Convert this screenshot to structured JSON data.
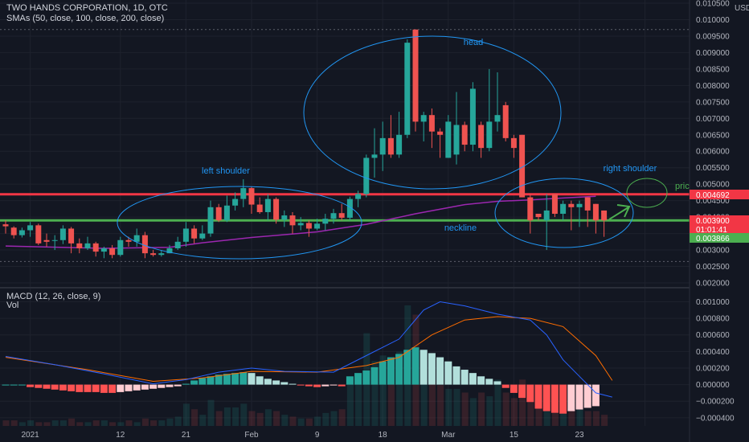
{
  "header": {
    "title": "TWO HANDS CORPORATION, 1D, OTC",
    "sma_label": "SMAs (50, close, 100, close, 200, close)",
    "currency": "USD"
  },
  "indicators": {
    "macd_label": "MACD (12, 26, close, 9)",
    "vol_label": "Vol"
  },
  "colors": {
    "background": "#131722",
    "up": "#26a69a",
    "down": "#ef5350",
    "sma": "#9c27b0",
    "resistance": "#f23645",
    "neckline": "#4caf50",
    "annotation": "#2196f3",
    "macd": "#2962ff",
    "signal": "#ff6d00"
  },
  "chart_data": [
    {
      "type": "candlestick",
      "price_axis": {
        "ylim": [
          0.002,
          0.0105
        ],
        "ticks": [
          0.002,
          0.0025,
          0.003,
          0.0035,
          0.004,
          0.0045,
          0.005,
          0.0055,
          0.006,
          0.0065,
          0.007,
          0.0075,
          0.008,
          0.0085,
          0.009,
          0.0095,
          0.01,
          0.0105
        ],
        "tick_labels": [
          "0.002000",
          "0.002500",
          "0.003000",
          "0.003500",
          "0.004000",
          "0.004500",
          "0.005000",
          "0.005500",
          "0.006000",
          "0.006500",
          "0.007000",
          "0.007500",
          "0.008000",
          "0.008500",
          "0.009000",
          "0.009500",
          "0.010000",
          "0.010500"
        ]
      },
      "time_axis": {
        "ticks": [
          3,
          14,
          22,
          30,
          38,
          46,
          54,
          62,
          70,
          78
        ],
        "labels": [
          "2021",
          "12",
          "21",
          "Feb",
          "9",
          "18",
          "Mar",
          "15",
          "23"
        ]
      },
      "candles": [
        [
          0.00378,
          0.00372,
          0.0039,
          0.0035
        ],
        [
          0.00368,
          0.00345,
          0.00372,
          0.00335
        ],
        [
          0.00345,
          0.0036,
          0.00368,
          0.00338
        ],
        [
          0.0036,
          0.00375,
          0.00385,
          0.0034
        ],
        [
          0.00375,
          0.0032,
          0.0038,
          0.00315
        ],
        [
          0.0033,
          0.00325,
          0.0035,
          0.0031
        ],
        [
          0.00328,
          0.0033,
          0.00345,
          0.003
        ],
        [
          0.0033,
          0.00365,
          0.00375,
          0.00318
        ],
        [
          0.00365,
          0.0032,
          0.0037,
          0.0029
        ],
        [
          0.0032,
          0.00305,
          0.00335,
          0.0029
        ],
        [
          0.00305,
          0.0032,
          0.0034,
          0.003
        ],
        [
          0.0032,
          0.00295,
          0.00325,
          0.0028
        ],
        [
          0.00295,
          0.00305,
          0.0031,
          0.00275
        ],
        [
          0.00305,
          0.00285,
          0.00315,
          0.00275
        ],
        [
          0.00285,
          0.0033,
          0.0034,
          0.0028
        ],
        [
          0.0033,
          0.00325,
          0.0034,
          0.0031
        ],
        [
          0.00325,
          0.00345,
          0.00365,
          0.0031
        ],
        [
          0.00345,
          0.0029,
          0.00355,
          0.00275
        ],
        [
          0.0029,
          0.00285,
          0.003,
          0.0028
        ],
        [
          0.00285,
          0.0029,
          0.003,
          0.0028
        ],
        [
          0.0029,
          0.00305,
          0.00315,
          0.0029
        ],
        [
          0.00305,
          0.00325,
          0.0034,
          0.003
        ],
        [
          0.00325,
          0.00365,
          0.00385,
          0.0031
        ],
        [
          0.00365,
          0.00335,
          0.00375,
          0.0032
        ],
        [
          0.00335,
          0.0035,
          0.00375,
          0.0033
        ],
        [
          0.0035,
          0.0043,
          0.0045,
          0.0034
        ],
        [
          0.0043,
          0.0039,
          0.0044,
          0.00385
        ],
        [
          0.0039,
          0.00435,
          0.00465,
          0.00385
        ],
        [
          0.00435,
          0.00455,
          0.00475,
          0.0042
        ],
        [
          0.00455,
          0.00488,
          0.00515,
          0.0043
        ],
        [
          0.00488,
          0.00438,
          0.00492,
          0.0041
        ],
        [
          0.00438,
          0.00415,
          0.0046,
          0.0041
        ],
        [
          0.00415,
          0.00455,
          0.0047,
          0.0039
        ],
        [
          0.00455,
          0.00392,
          0.0046,
          0.0038
        ],
        [
          0.00392,
          0.00405,
          0.0042,
          0.0037
        ],
        [
          0.00405,
          0.00375,
          0.00415,
          0.0035
        ],
        [
          0.00375,
          0.00382,
          0.004,
          0.0036
        ],
        [
          0.00382,
          0.00365,
          0.0039,
          0.0034
        ],
        [
          0.00365,
          0.0038,
          0.00395,
          0.0036
        ],
        [
          0.0038,
          0.00395,
          0.0041,
          0.0036
        ],
        [
          0.00395,
          0.00412,
          0.00425,
          0.0038
        ],
        [
          0.00412,
          0.00398,
          0.0044,
          0.0039
        ],
        [
          0.00398,
          0.00455,
          0.00462,
          0.0039
        ],
        [
          0.00455,
          0.0047,
          0.0048,
          0.0043
        ],
        [
          0.0047,
          0.0058,
          0.0059,
          0.0046
        ],
        [
          0.0058,
          0.0059,
          0.0067,
          0.0052
        ],
        [
          0.0059,
          0.0064,
          0.0069,
          0.0054
        ],
        [
          0.0064,
          0.0059,
          0.0071,
          0.0058
        ],
        [
          0.0059,
          0.0065,
          0.0072,
          0.0058
        ],
        [
          0.0065,
          0.0093,
          0.0094,
          0.0064
        ],
        [
          0.0097,
          0.0069,
          0.0097,
          0.0066
        ],
        [
          0.0069,
          0.0071,
          0.0072,
          0.0063
        ],
        [
          0.0071,
          0.0066,
          0.0073,
          0.0061
        ],
        [
          0.0066,
          0.0065,
          0.0067,
          0.0058
        ],
        [
          0.0058,
          0.0069,
          0.0071,
          0.0058
        ],
        [
          0.0059,
          0.0068,
          0.0078,
          0.0056
        ],
        [
          0.0068,
          0.0062,
          0.0069,
          0.006
        ],
        [
          0.0062,
          0.0079,
          0.0081,
          0.006
        ],
        [
          0.0068,
          0.0061,
          0.0069,
          0.0058
        ],
        [
          0.0061,
          0.0069,
          0.0085,
          0.006
        ],
        [
          0.0069,
          0.0071,
          0.0084,
          0.0066
        ],
        [
          0.0074,
          0.0064,
          0.0075,
          0.0063
        ],
        [
          0.0064,
          0.0061,
          0.0065,
          0.0058
        ],
        [
          0.0065,
          0.0046,
          0.0065,
          0.0046
        ],
        [
          0.0046,
          0.0039,
          0.0047,
          0.0035
        ],
        [
          0.0041,
          0.004,
          0.0041,
          0.0039
        ],
        [
          0.0039,
          0.0042,
          0.0047,
          0.003
        ],
        [
          0.0047,
          0.0041,
          0.0047,
          0.004
        ],
        [
          0.0041,
          0.0044,
          0.0045,
          0.0039
        ],
        [
          0.0044,
          0.0043,
          0.0045,
          0.0036
        ],
        [
          0.0043,
          0.0044,
          0.0045,
          0.0037
        ],
        [
          0.0046,
          0.0042,
          0.0046,
          0.0037
        ],
        [
          0.0044,
          0.0039,
          0.0044,
          0.0035
        ],
        [
          0.0042,
          0.0039,
          0.0042,
          0.0034
        ]
      ],
      "sma_points": [
        [
          0,
          0.00312
        ],
        [
          12,
          0.00305
        ],
        [
          20,
          0.00308
        ],
        [
          24,
          0.00322
        ],
        [
          30,
          0.00338
        ],
        [
          38,
          0.00355
        ],
        [
          44,
          0.00378
        ],
        [
          50,
          0.0041
        ],
        [
          56,
          0.00438
        ],
        [
          60,
          0.00448
        ],
        [
          64,
          0.00452
        ],
        [
          68,
          0.00458
        ],
        [
          72,
          0.00463
        ]
      ],
      "horizontal_lines": [
        {
          "value": 0.004692,
          "color": "resistance"
        },
        {
          "value": 0.0039,
          "color": "neckline"
        }
      ],
      "price_labels": [
        {
          "text": "0.004692",
          "value": 0.004692,
          "bg": "#f23645"
        },
        {
          "text": "0.003900",
          "value": 0.0039,
          "bg": "#f23645"
        },
        {
          "text": "01:01:41",
          "value": 0.00375,
          "bg": "#f23645"
        },
        {
          "text": "0.003866",
          "value": 0.003866,
          "bg": "#4caf50"
        }
      ],
      "annotations": [
        "head",
        "left shoulder",
        "right shoulder",
        "neckline",
        "pric"
      ],
      "dotted_levels": [
        0.0097,
        0.00265
      ]
    },
    {
      "type": "macd",
      "ylim": [
        -0.00045,
        0.00115
      ],
      "ticks": [
        -0.0004,
        -0.0002,
        0,
        0.0002,
        0.0004,
        0.0006,
        0.0008,
        0.001
      ],
      "tick_labels": [
        "−0.000400",
        "−0.000200",
        "0.000000",
        "0.000200",
        "0.000400",
        "0.000600",
        "0.000800",
        "0.001000"
      ],
      "histogram": [
        0.0,
        0.0,
        0.0,
        -3e-05,
        -4e-05,
        -5e-05,
        -6e-05,
        -7e-05,
        -8e-05,
        -9e-05,
        -9e-05,
        -9e-05,
        -0.0001,
        -0.0001,
        -9e-05,
        -8e-05,
        -7e-05,
        -6e-05,
        -5e-05,
        -4e-05,
        -3e-05,
        -2e-05,
        1e-05,
        5e-05,
        8e-05,
        0.0001,
        0.00012,
        0.00013,
        0.00014,
        0.00015,
        0.00014,
        0.0001,
        7e-05,
        5e-05,
        3e-05,
        1e-05,
        -1e-05,
        -2e-05,
        -3e-05,
        -2e-05,
        -1e-05,
        -2e-05,
        0.0001,
        0.00014,
        0.00017,
        0.00021,
        0.00028,
        0.00033,
        0.00037,
        0.00042,
        0.00045,
        0.00042,
        0.00038,
        0.00033,
        0.00028,
        0.00022,
        0.00018,
        0.00014,
        0.0001,
        7e-05,
        4e-05,
        -4e-05,
        -0.0001,
        -0.00016,
        -0.00021,
        -0.00029,
        -0.00032,
        -0.00034,
        -0.00035,
        -0.00032,
        -0.0003,
        -0.00028,
        -0.00026
      ],
      "macd_line": [
        [
          0,
          0.00034
        ],
        [
          6,
          0.00024
        ],
        [
          12,
          0.00013
        ],
        [
          18,
          1e-05
        ],
        [
          22,
          6e-05
        ],
        [
          26,
          0.00015
        ],
        [
          30,
          0.0002
        ],
        [
          34,
          0.00016
        ],
        [
          40,
          0.00015
        ],
        [
          44,
          0.00035
        ],
        [
          48,
          0.00055
        ],
        [
          51,
          0.0009
        ],
        [
          53,
          0.001
        ],
        [
          56,
          0.00095
        ],
        [
          60,
          0.00085
        ],
        [
          64,
          0.00078
        ],
        [
          66,
          0.0006
        ],
        [
          68,
          0.0003
        ],
        [
          70,
          0.0001
        ],
        [
          72,
          -0.0001
        ],
        [
          74,
          -0.00015
        ]
      ],
      "signal_line": [
        [
          0,
          0.00033
        ],
        [
          10,
          0.00018
        ],
        [
          18,
          4e-05
        ],
        [
          24,
          8e-05
        ],
        [
          30,
          0.00016
        ],
        [
          38,
          0.00015
        ],
        [
          44,
          0.00023
        ],
        [
          48,
          0.00033
        ],
        [
          52,
          0.0006
        ],
        [
          56,
          0.00078
        ],
        [
          60,
          0.00082
        ],
        [
          64,
          0.0008
        ],
        [
          68,
          0.0007
        ],
        [
          72,
          0.00035
        ],
        [
          74,
          5e-05
        ]
      ],
      "volume": [
        3e-05,
        3e-05,
        2e-05,
        3e-05,
        2e-05,
        2e-05,
        3e-05,
        3e-05,
        4e-05,
        2e-05,
        2e-05,
        3e-05,
        3e-05,
        2e-05,
        2e-05,
        3e-05,
        2e-05,
        4e-05,
        3e-05,
        3e-05,
        4e-05,
        5e-05,
        0.00012,
        9e-05,
        6e-05,
        0.00014,
        8e-05,
        0.0001,
        0.0001,
        0.00012,
        8e-05,
        7e-05,
        9e-05,
        8e-05,
        6e-05,
        5e-05,
        4e-05,
        4e-05,
        5e-05,
        7e-05,
        8e-05,
        9e-05,
        0.00025,
        0.00028,
        0.0005,
        0.00035,
        0.00038,
        0.00036,
        0.0004,
        0.00065,
        0.0006,
        0.00035,
        0.00025,
        0.00022,
        0.0002,
        0.0002,
        0.00018,
        0.00015,
        0.00018,
        0.00016,
        0.00025,
        0.00018,
        0.00015,
        0.00025,
        0.00022,
        0.00015,
        0.00012,
        0.00012,
        0.0001,
        0.00012,
        9e-05,
        8e-05,
        8e-05,
        6e-05
      ]
    }
  ]
}
